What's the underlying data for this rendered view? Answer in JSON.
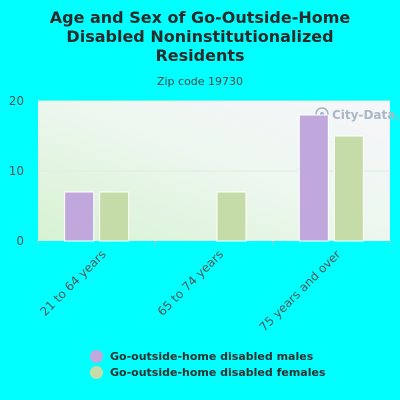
{
  "chart_data": {
    "type": "bar",
    "title": "Age and Sex of Go-Outside-Home Disabled Noninstitutionalized Residents",
    "subtitle": "Zip code 19730",
    "watermark": "City-Data.com",
    "categories": [
      "21 to 64 years",
      "65 to 74 years",
      "75 years and over"
    ],
    "series": [
      {
        "name": "Go-outside-home disabled males",
        "values": [
          7,
          0,
          18
        ],
        "color": "#c0a8dc"
      },
      {
        "name": "Go-outside-home disabled females",
        "values": [
          7,
          7,
          15
        ],
        "color": "#c5dba8"
      }
    ],
    "xlabel": "",
    "ylabel": "",
    "ylim": [
      0,
      20
    ],
    "yticks": [
      "0",
      "10",
      "20"
    ],
    "grid": true,
    "legend": "bottom"
  }
}
